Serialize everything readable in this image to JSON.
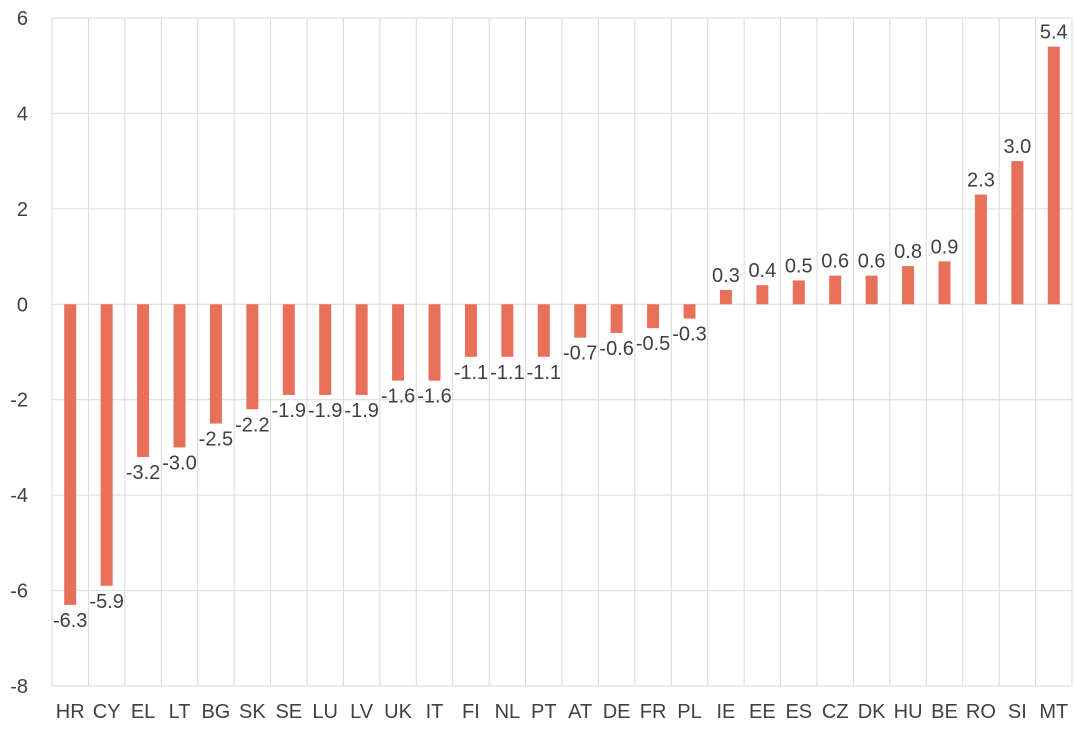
{
  "chart_data": {
    "type": "bar",
    "categories": [
      "HR",
      "CY",
      "EL",
      "LT",
      "BG",
      "SK",
      "SE",
      "LU",
      "LV",
      "UK",
      "IT",
      "FI",
      "NL",
      "PT",
      "AT",
      "DE",
      "FR",
      "PL",
      "IE",
      "EE",
      "ES",
      "CZ",
      "DK",
      "HU",
      "BE",
      "RO",
      "SI",
      "MT"
    ],
    "values": [
      -6.3,
      -5.9,
      -3.2,
      -3.0,
      -2.5,
      -2.2,
      -1.9,
      -1.9,
      -1.9,
      -1.6,
      -1.6,
      -1.1,
      -1.1,
      -1.1,
      -0.7,
      -0.6,
      -0.5,
      -0.3,
      0.3,
      0.4,
      0.5,
      0.6,
      0.6,
      0.8,
      0.9,
      2.3,
      3.0,
      5.4
    ],
    "data_labels": [
      "-6.3",
      "-5.9",
      "-3.2",
      "-3.0",
      "-2.5",
      "-2.2",
      "-1.9",
      "-1.9",
      "-1.9",
      "-1.6",
      "-1.6",
      "-1.1",
      "-1.1",
      "-1.1",
      "-0.7",
      "-0.6",
      "-0.5",
      "-0.3",
      "0.3",
      "0.4",
      "0.5",
      "0.6",
      "0.6",
      "0.8",
      "0.9",
      "2.3",
      "3.0",
      "5.4"
    ],
    "ylim": [
      -8,
      6
    ],
    "yticks": [
      6,
      4,
      2,
      0,
      -2,
      -4,
      -6,
      -8
    ],
    "title": "",
    "xlabel": "",
    "ylabel": "",
    "grid": true,
    "colors": {
      "bar": "#E8705A",
      "grid": "#D9D9D9",
      "text": "#404040"
    }
  }
}
